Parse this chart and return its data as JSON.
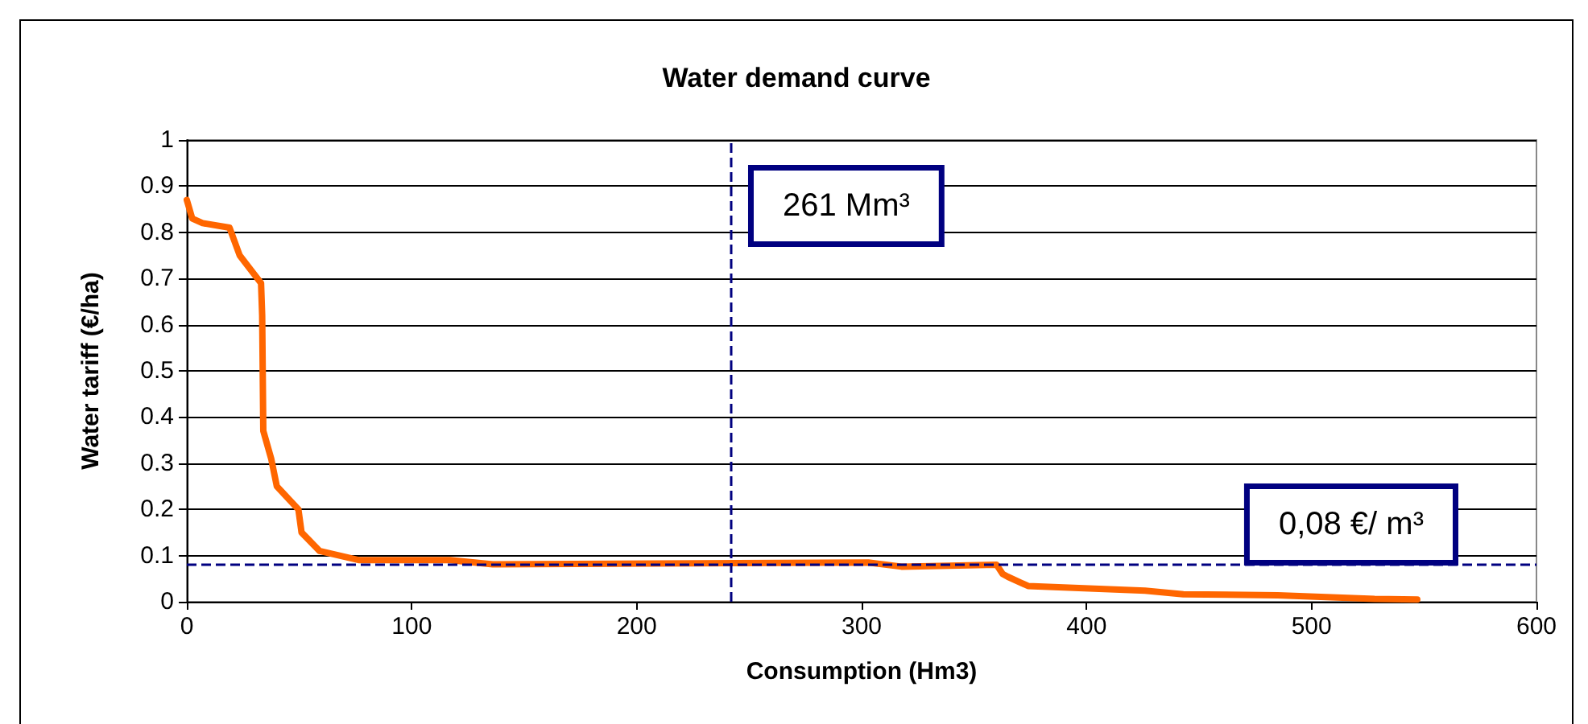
{
  "chart_data": {
    "type": "line",
    "title": "Water demand curve",
    "xlabel": "Consumption (Hm3)",
    "ylabel": "Water tariff (€/ha)",
    "series": [
      {
        "color": "#ff6600",
        "x": [
          0,
          2.4,
          7,
          19,
          23.5,
          33,
          33.5,
          34,
          37.5,
          40,
          49.6,
          51,
          59,
          76.7,
          117,
          136,
          303,
          317.7,
          360,
          362.7,
          365,
          374,
          426,
          443,
          485,
          528,
          547
        ],
        "values": [
          0.87,
          0.83,
          0.82,
          0.81,
          0.75,
          0.69,
          0.62,
          0.37,
          0.31,
          0.25,
          0.2,
          0.15,
          0.11,
          0.09,
          0.09,
          0.081,
          0.085,
          0.076,
          0.08,
          0.06,
          0.054,
          0.034,
          0.024,
          0.016,
          0.014,
          0.006,
          0.005
        ]
      }
    ],
    "xlim": [
      0,
      600
    ],
    "xticks": [
      0,
      100,
      200,
      300,
      400,
      500,
      600
    ],
    "ylim": [
      0,
      1
    ],
    "yticks": [
      0,
      0.1,
      0.2,
      0.3,
      0.4,
      0.5,
      0.6,
      0.7,
      0.8,
      0.9,
      1
    ],
    "grid": "y",
    "marker": "none",
    "line_style": "solid",
    "ref_lines": [
      {
        "axis": "x",
        "value": 242,
        "label": "261 Mm³",
        "color": "#000080",
        "line_style": "dashed"
      },
      {
        "axis": "y",
        "value": 0.08,
        "label": "0,08 €/ m³",
        "color": "#000080",
        "line_style": "dashed"
      }
    ]
  }
}
